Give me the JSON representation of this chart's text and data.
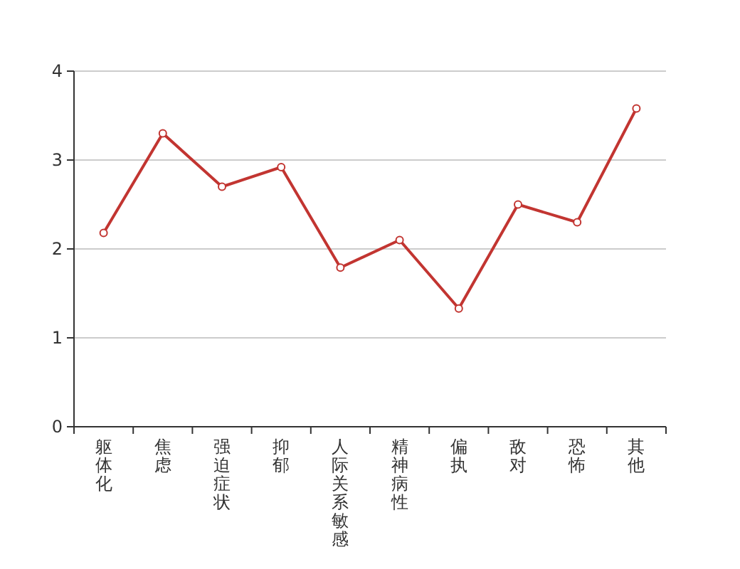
{
  "chart_data": {
    "type": "line",
    "categories": [
      "躯体化",
      "焦虑",
      "强迫症状",
      "抑郁",
      "人际关系敏感",
      "精神病性",
      "偏执",
      "敌对",
      "恐怖",
      "其他"
    ],
    "values": [
      2.18,
      3.3,
      2.7,
      2.92,
      1.79,
      2.1,
      1.33,
      2.5,
      2.3,
      3.58
    ],
    "color": "#c23531",
    "ylim": [
      0,
      4
    ],
    "yticks": [
      0,
      1,
      2,
      3,
      4
    ],
    "grid": "y",
    "marker": "circle"
  }
}
